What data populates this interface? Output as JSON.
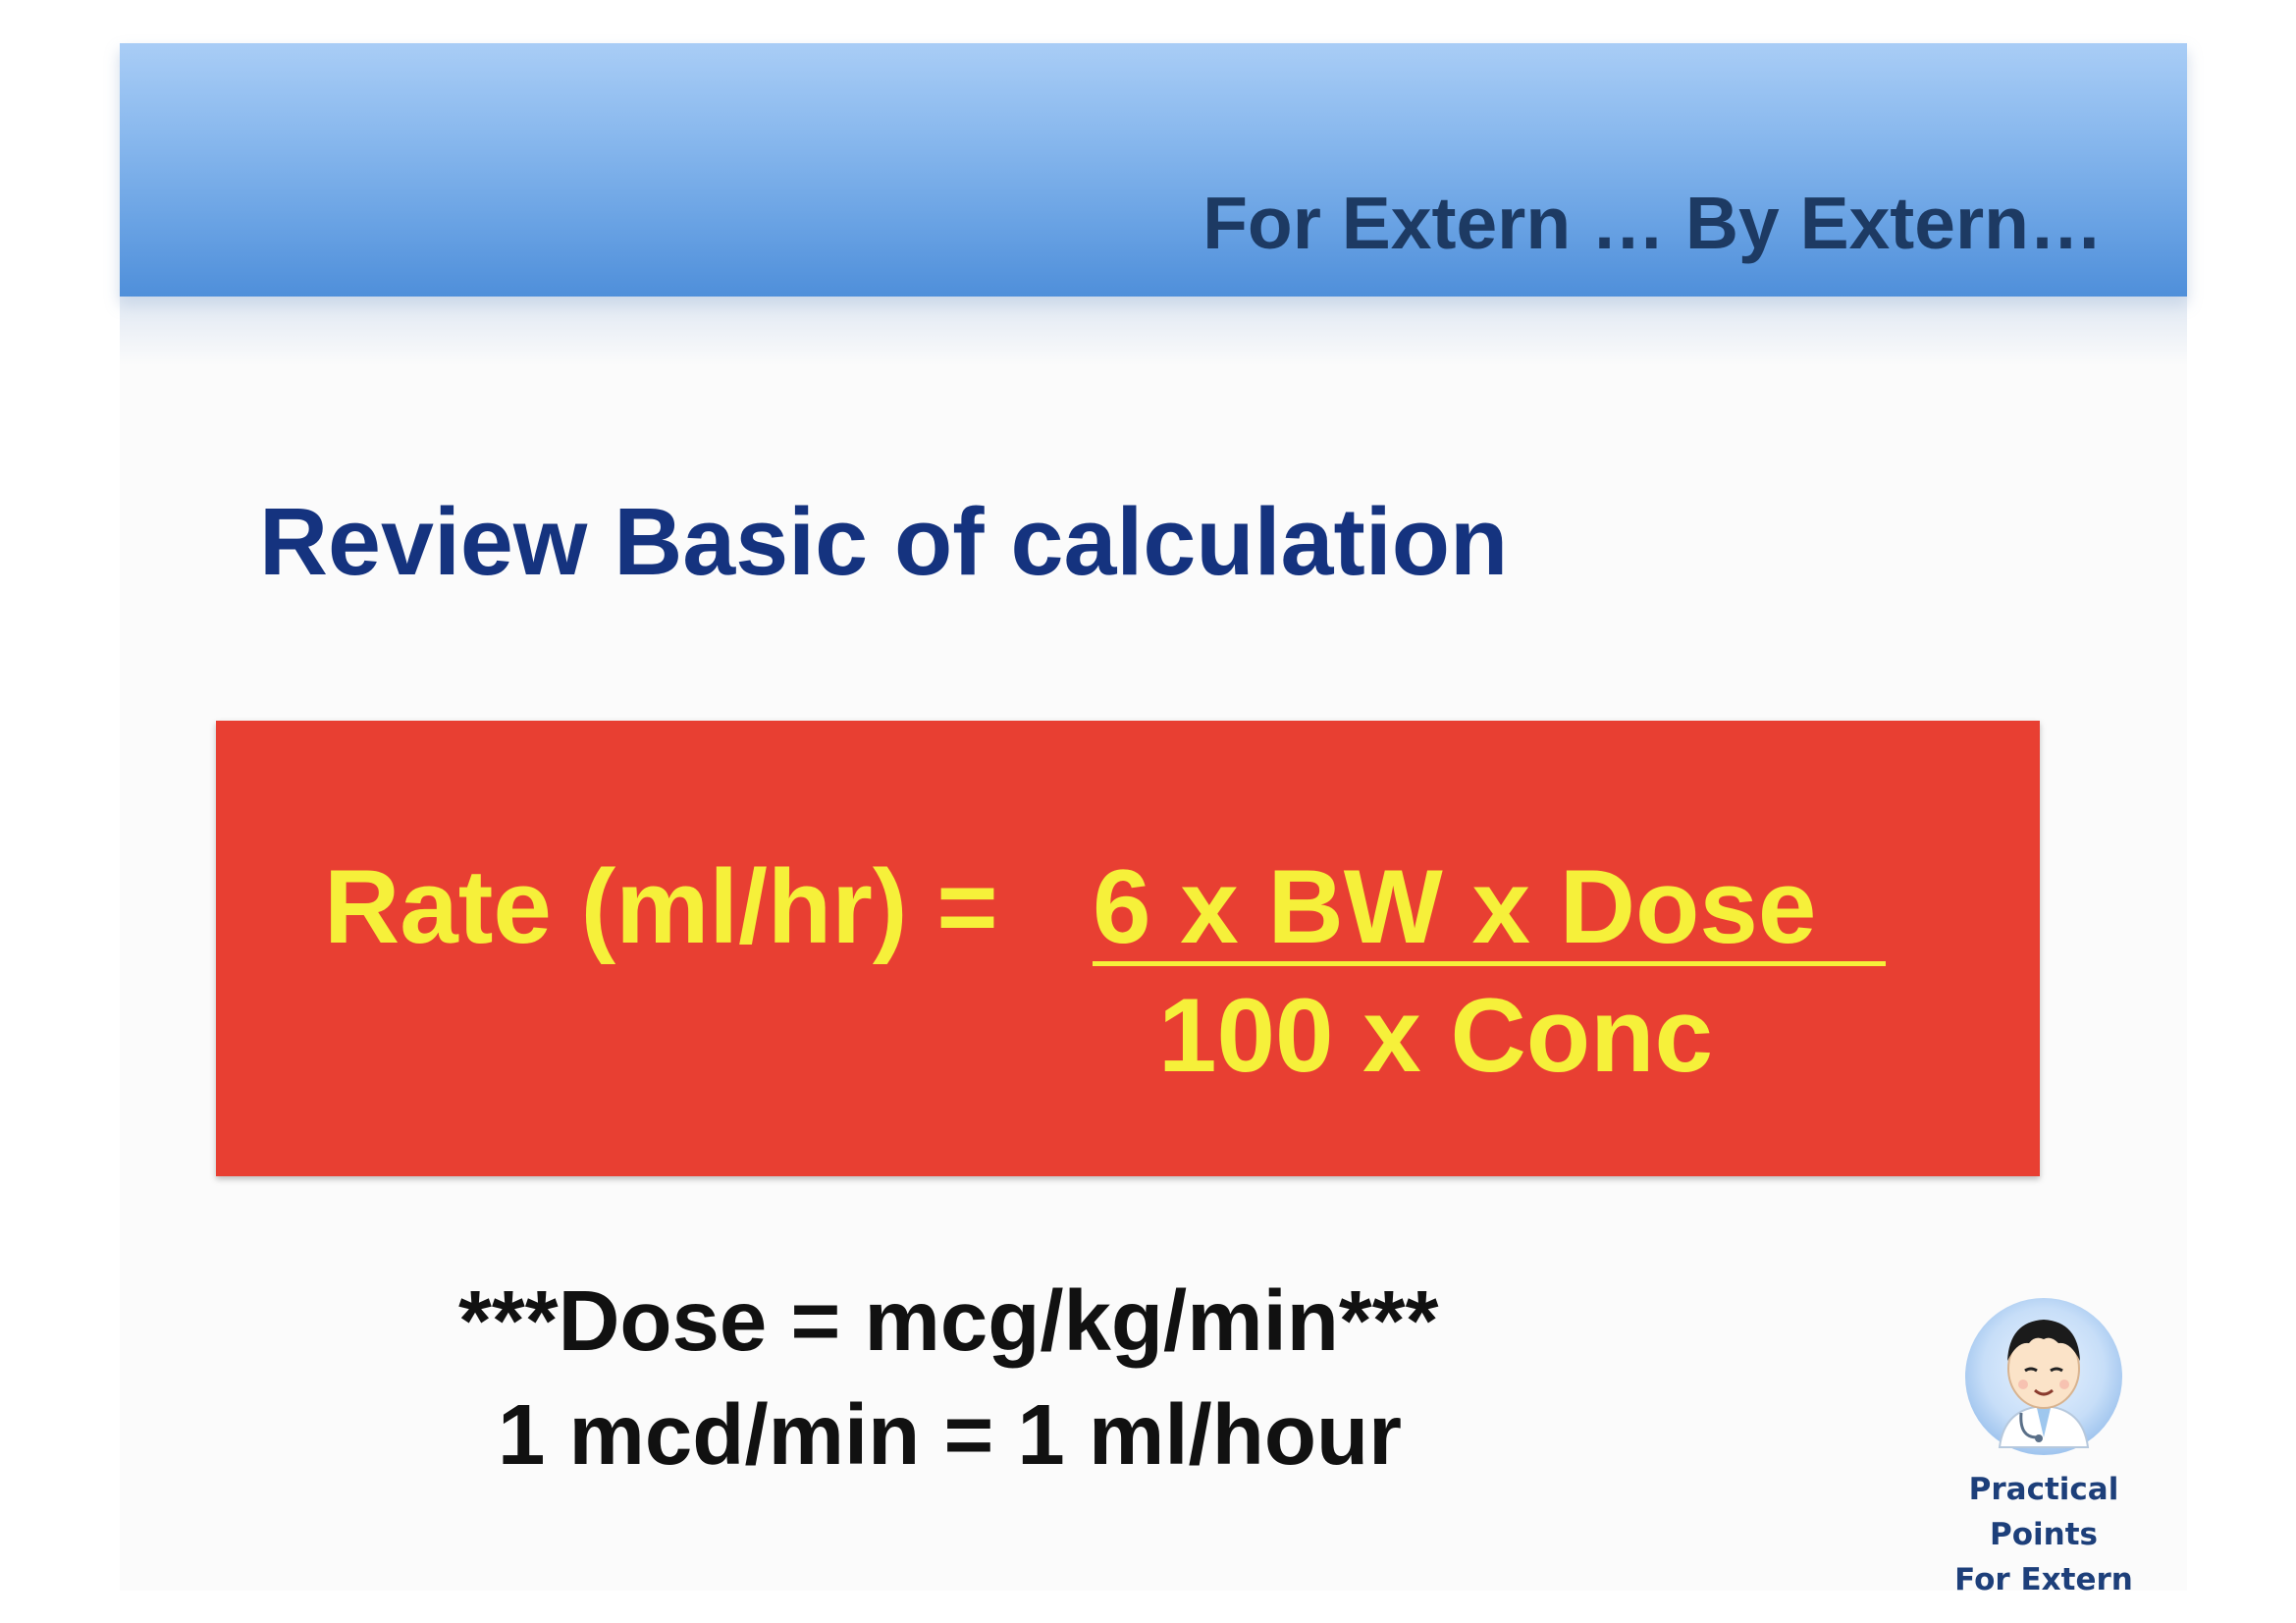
{
  "header": {
    "title": "For Extern … By Extern…"
  },
  "main": {
    "heading": "Review Basic of calculation"
  },
  "formula": {
    "lhs": "Rate (ml/hr) =",
    "numerator": "6 x BW x Dose",
    "denominator": "100 x Conc"
  },
  "notes": {
    "line1": "***Dose = mcg/kg/min***",
    "line2": "1 mcd/min = 1 ml/hour"
  },
  "logo": {
    "icon": "doctor-cartoon-icon",
    "line1": "Practical Points",
    "line2": "For Extern"
  },
  "colors": {
    "header_band": "#6aa3e4",
    "heading_text": "#15337f",
    "formula_box": "#e83f32",
    "formula_text": "#f6f03a"
  }
}
